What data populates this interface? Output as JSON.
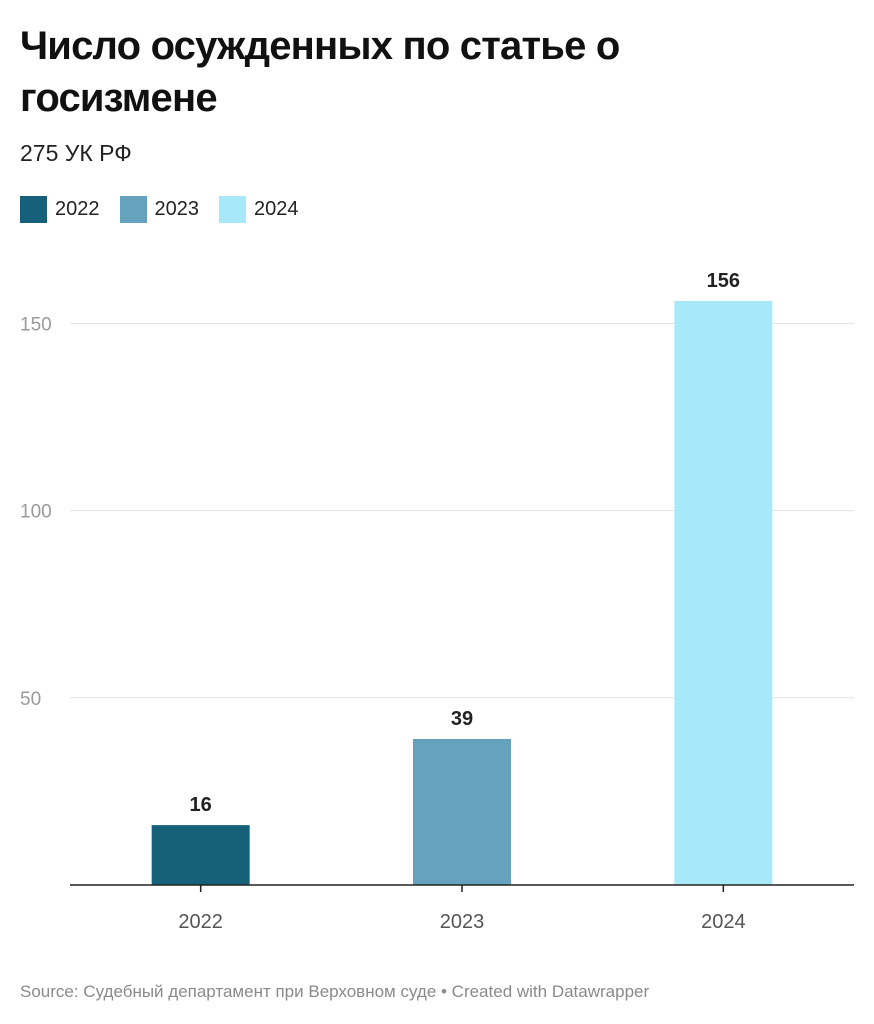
{
  "title": "Число осужденных по статье о госизмене",
  "subtitle": "275 УК РФ",
  "source": "Source: Судебный департамент при Верховном суде • Created with Datawrapper",
  "chart_data": {
    "type": "bar",
    "categories": [
      "2022",
      "2023",
      "2024"
    ],
    "values": [
      16,
      39,
      156
    ],
    "colors": [
      "#17607a",
      "#64a2be",
      "#a8e8fb"
    ],
    "legend": [
      "2022",
      "2023",
      "2024"
    ],
    "legend_position": "top-left",
    "ylim": [
      0,
      160
    ],
    "yticks": [
      50,
      100,
      150
    ],
    "grid": true,
    "data_labels": true
  }
}
